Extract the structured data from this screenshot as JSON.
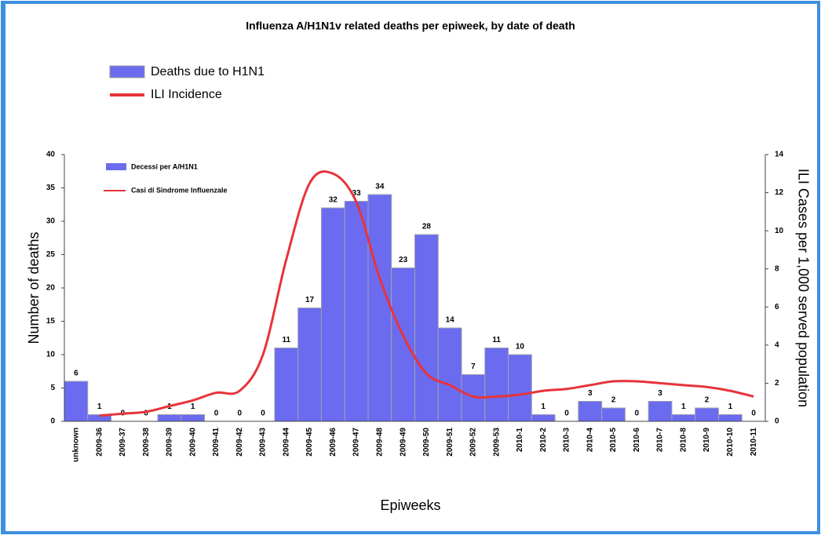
{
  "chart_data": {
    "type": "bar",
    "title": "Influenza A/H1N1v related deaths per epiweek, by date of death",
    "xlabel": "Epiweeks",
    "ylabel": "Number of deaths",
    "y2label": "ILI Cases per 1,000 served population",
    "legend_inner": [
      "Decessi per A/H1N1",
      "Casi di Sindrome Influenzale"
    ],
    "categories": [
      "unknown",
      "2009-36",
      "2009-37",
      "2009-38",
      "2009-39",
      "2009-40",
      "2009-41",
      "2009-42",
      "2009-43",
      "2009-44",
      "2009-45",
      "2009-46",
      "2009-47",
      "2009-48",
      "2009-49",
      "2009-50",
      "2009-51",
      "2009-52",
      "2009-53",
      "2010-1",
      "2010-2",
      "2010-3",
      "2010-4",
      "2010-5",
      "2010-6",
      "2010-7",
      "2010-8",
      "2010-9",
      "2010-10",
      "2010-11"
    ],
    "series": [
      {
        "name": "Deaths due to H1N1",
        "type": "bar",
        "color": "#6b6bef",
        "values": [
          6,
          1,
          0,
          0,
          1,
          1,
          0,
          0,
          0,
          11,
          17,
          32,
          33,
          34,
          23,
          28,
          14,
          7,
          11,
          10,
          1,
          0,
          3,
          2,
          0,
          3,
          1,
          2,
          1,
          0
        ]
      },
      {
        "name": "ILI Incidence",
        "type": "line",
        "axis": "y2",
        "color": "#e8333a",
        "values": [
          null,
          0.3,
          0.4,
          0.5,
          0.8,
          1.1,
          1.5,
          1.6,
          3.5,
          8.5,
          12.5,
          13.0,
          11.5,
          7.5,
          4.5,
          2.5,
          1.9,
          1.3,
          1.3,
          1.4,
          1.6,
          1.7,
          1.9,
          2.1,
          2.1,
          2.0,
          1.9,
          1.8,
          1.6,
          1.3
        ]
      }
    ],
    "ylim": [
      0,
      40
    ],
    "yticks": [
      0,
      5,
      10,
      15,
      20,
      25,
      30,
      35,
      40
    ],
    "y2lim": [
      0,
      14
    ],
    "y2ticks": [
      0,
      2,
      4,
      6,
      8,
      10,
      12,
      14
    ]
  }
}
